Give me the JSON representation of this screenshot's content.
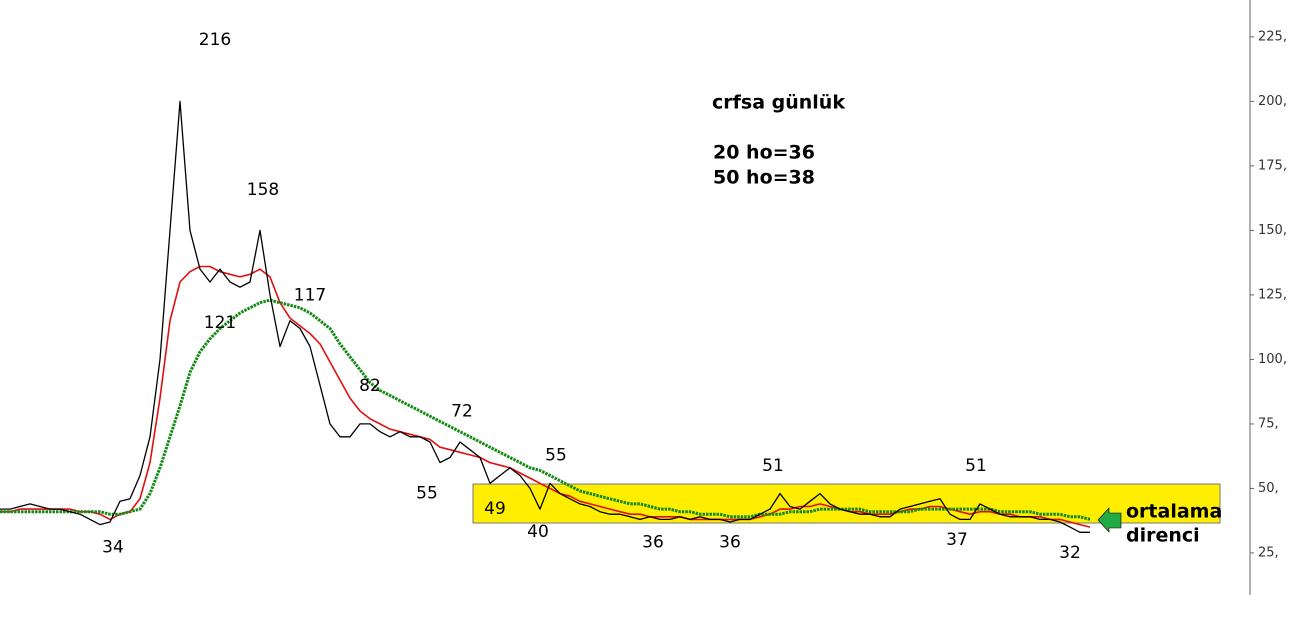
{
  "chart_data": {
    "type": "line",
    "note": {
      "title": "crfsa günlük",
      "lines": [
        "20 ho=36",
        "50 ho=38"
      ]
    },
    "callout": [
      "ortalama",
      "direnci"
    ],
    "xlim": [
      0,
      125
    ],
    "ylim": [
      8.7,
      239.3
    ],
    "yticks": [
      {
        "value": 225,
        "label": "225,"
      },
      {
        "value": 200,
        "label": "200,"
      },
      {
        "value": 175,
        "label": "175,"
      },
      {
        "value": 150,
        "label": "150,"
      },
      {
        "value": 125,
        "label": "125,"
      },
      {
        "value": 100,
        "label": "100,"
      },
      {
        "value": 75,
        "label": "75,"
      },
      {
        "value": 50,
        "label": "50,"
      },
      {
        "value": 25,
        "label": "25,"
      }
    ],
    "zone": {
      "xlim": [
        47.3,
        122
      ],
      "ylim": [
        36.6,
        51.7
      ],
      "color": "#ffee00"
    },
    "x": [
      0,
      1,
      2,
      3,
      4,
      5,
      6,
      7,
      8,
      9,
      10,
      11,
      12,
      13,
      14,
      15,
      16,
      17,
      18,
      19,
      20,
      21,
      22,
      23,
      24,
      25,
      26,
      27,
      28,
      29,
      30,
      31,
      32,
      33,
      34,
      35,
      36,
      37,
      38,
      39,
      40,
      41,
      42,
      43,
      44,
      45,
      46,
      47,
      48,
      49,
      50,
      51,
      52,
      53,
      54,
      55,
      56,
      57,
      58,
      59,
      60,
      61,
      62,
      63,
      64,
      65,
      66,
      67,
      68,
      69,
      70,
      71,
      72,
      73,
      74,
      75,
      76,
      77,
      78,
      79,
      80,
      81,
      82,
      83,
      84,
      85,
      86,
      87,
      88,
      89,
      90,
      91,
      92,
      93,
      94,
      95,
      96,
      97,
      98,
      99,
      100,
      101,
      102,
      103,
      104,
      105,
      106,
      107,
      108,
      109
    ],
    "series": [
      {
        "color": "#000000",
        "values": [
          42,
          42,
          43,
          44,
          43,
          42,
          42,
          41,
          40,
          38,
          36,
          37,
          45,
          46,
          55,
          70,
          100,
          150,
          200,
          150,
          135,
          130,
          135,
          130,
          128,
          130,
          150,
          125,
          105,
          115,
          112,
          105,
          90,
          75,
          70,
          70,
          75,
          75,
          72,
          70,
          72,
          70,
          70,
          68,
          60,
          62,
          68,
          65,
          62,
          52,
          55,
          58,
          55,
          50,
          42,
          52,
          48,
          46,
          44,
          43,
          41,
          40,
          40,
          39,
          38,
          39,
          38,
          38,
          39,
          38,
          39,
          38,
          38,
          37,
          38,
          38,
          40,
          42,
          48,
          43,
          42,
          45,
          48,
          44,
          42,
          41,
          40,
          40,
          39,
          39,
          42,
          43,
          44,
          45,
          46,
          40,
          38,
          38,
          44,
          42,
          40,
          39,
          39,
          39,
          38,
          38,
          37,
          35,
          33,
          33
        ]
      },
      {
        "color": "#e01010",
        "values": [
          41,
          41,
          42,
          42,
          42,
          42,
          42,
          42,
          41,
          41,
          40,
          38,
          40,
          41,
          46,
          60,
          85,
          115,
          130,
          134,
          136,
          136,
          134,
          133,
          132,
          133,
          135,
          132,
          122,
          116,
          113,
          110,
          106,
          99,
          92,
          85,
          80,
          77,
          75,
          73,
          72,
          71,
          70,
          69,
          66,
          65,
          64,
          63,
          62,
          60,
          59,
          58,
          56,
          54,
          52,
          50,
          48,
          47,
          45,
          44,
          43,
          42,
          41,
          40,
          40,
          39,
          39,
          39,
          39,
          38,
          38,
          38,
          38,
          38,
          38,
          38,
          39,
          40,
          42,
          42,
          43,
          43,
          44,
          43,
          42,
          41,
          41,
          40,
          40,
          40,
          41,
          42,
          42,
          43,
          43,
          42,
          41,
          40,
          41,
          41,
          40,
          40,
          39,
          39,
          39,
          38,
          38,
          37,
          36,
          35
        ]
      },
      {
        "color": "#138a13",
        "values": [
          41,
          41,
          41,
          41,
          41,
          41,
          41,
          41,
          41,
          41,
          41,
          40,
          40,
          41,
          42,
          48,
          58,
          70,
          82,
          95,
          103,
          108,
          112,
          115,
          118,
          120,
          122,
          123,
          122,
          121,
          120,
          118,
          115,
          112,
          106,
          101,
          96,
          91,
          88,
          86,
          84,
          82,
          80,
          78,
          76,
          74,
          72,
          70,
          68,
          66,
          64,
          62,
          60,
          58,
          57,
          55,
          53,
          51,
          49,
          48,
          47,
          46,
          45,
          44,
          44,
          43,
          42,
          42,
          41,
          41,
          40,
          40,
          40,
          39,
          39,
          39,
          40,
          40,
          40,
          41,
          41,
          41,
          42,
          42,
          42,
          42,
          42,
          41,
          41,
          41,
          41,
          41,
          42,
          42,
          42,
          42,
          42,
          42,
          42,
          42,
          41,
          41,
          41,
          41,
          40,
          40,
          40,
          39,
          39,
          38
        ]
      }
    ],
    "peak_labels": [
      {
        "x": 21.5,
        "value": 216
      },
      {
        "x": 26.3,
        "value": 158
      },
      {
        "x": 31,
        "value": 117
      },
      {
        "x": 37,
        "value": 82
      },
      {
        "x": 46.2,
        "value": 72
      },
      {
        "x": 55.6,
        "value": 55
      },
      {
        "x": 77.3,
        "value": 51
      },
      {
        "x": 97.6,
        "value": 51
      }
    ],
    "trough_labels": [
      {
        "x": 11.3,
        "value": 34
      },
      {
        "x": 22,
        "value": 121
      },
      {
        "x": 42.7,
        "value": 55
      },
      {
        "x": 49.5,
        "value": 49
      },
      {
        "x": 53.8,
        "value": 40
      },
      {
        "x": 65.3,
        "value": 36
      },
      {
        "x": 73,
        "value": 36
      },
      {
        "x": 95.7,
        "value": 37
      },
      {
        "x": 107,
        "value": 32
      }
    ]
  }
}
